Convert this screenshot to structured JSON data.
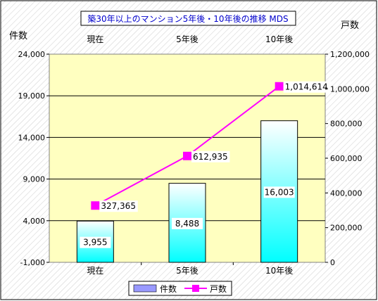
{
  "chart_data": {
    "type": "bar",
    "title": "築30年以上のマンション5年後・10年後の推移 MDS",
    "categories": [
      "現在",
      "5年後",
      "10年後"
    ],
    "top_categories": [
      "現在",
      "5年後",
      "10年後"
    ],
    "y_left": {
      "label": "件数",
      "range": [
        -1000,
        24000
      ],
      "ticks": [
        -1000,
        4000,
        9000,
        14000,
        19000,
        24000
      ],
      "tick_labels": [
        "-1,000",
        "4,000",
        "9,000",
        "14,000",
        "19,000",
        "24,000"
      ]
    },
    "y_right": {
      "label": "戸数",
      "range": [
        0,
        1200000
      ],
      "ticks": [
        0,
        200000,
        400000,
        600000,
        800000,
        1000000,
        1200000
      ],
      "tick_labels": [
        "0",
        "200,000",
        "400,000",
        "600,000",
        "800,000",
        "1,000,000",
        "1,200,000"
      ]
    },
    "series": [
      {
        "name": "件数",
        "kind": "bar",
        "axis": "left",
        "values": [
          3955,
          8488,
          16003
        ],
        "labels": [
          "3,955",
          "8,488",
          "16,003"
        ]
      },
      {
        "name": "戸数",
        "kind": "line",
        "axis": "right",
        "color": "#ff00ff",
        "values": [
          327365,
          612935,
          1014614
        ],
        "labels": [
          "327,365",
          "612,935",
          "1,014,614"
        ]
      }
    ],
    "grid": true,
    "legend_placement": "bottom",
    "colors": {
      "plot_background": "#ffffc0",
      "bar_top": "#ffffff",
      "bar_bottom": "#00ffff",
      "line": "#ff00ff",
      "legend_bar": "#9999ff",
      "title_text": "#0000cc"
    }
  }
}
